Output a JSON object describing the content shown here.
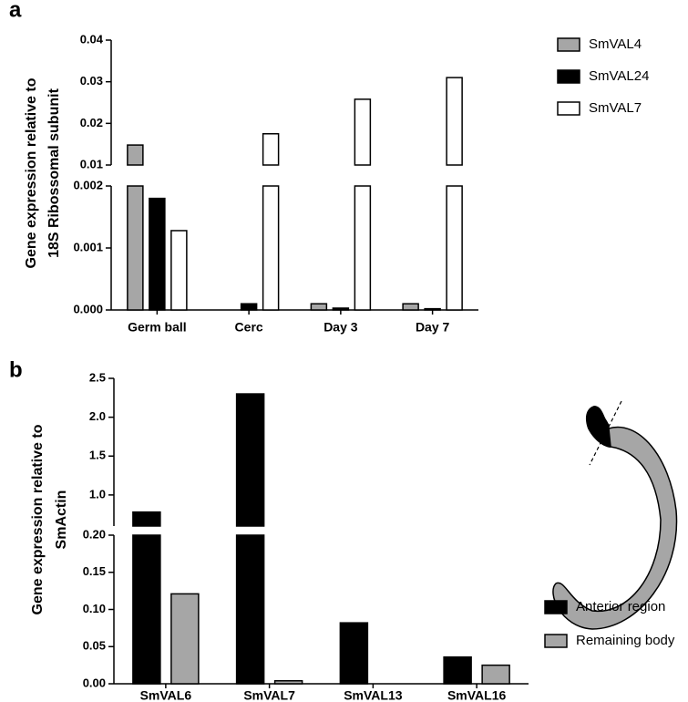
{
  "chart_data": [
    {
      "type": "bar",
      "panel_label": "a",
      "ylabel": [
        "Gene expression relative to",
        "18S Ribossomal subunit"
      ],
      "categories": [
        "Germ ball",
        "Cerc",
        "Day 3",
        "Day 7"
      ],
      "series": [
        {
          "name": "SmVAL4",
          "color": "#a6a6a6",
          "values": [
            0.0148,
            0,
            0.0001,
            0.0001
          ]
        },
        {
          "name": "SmVAL24",
          "color": "#000000",
          "values": [
            0.0018,
            0.0001,
            3e-05,
            2e-05
          ]
        },
        {
          "name": "SmVAL7",
          "color": "#ffffff",
          "values": [
            0.00128,
            0.0175,
            0.0258,
            0.031
          ]
        }
      ],
      "y_segments": [
        {
          "ylim": [
            0,
            0.002
          ],
          "yticks": [
            {
              "value": 0,
              "label": "0.000"
            },
            0.001,
            0.002
          ]
        },
        {
          "ylim": [
            0.01,
            0.04
          ],
          "yticks": [
            0.01,
            0.02,
            0.03,
            0.04
          ]
        }
      ],
      "legend": "right"
    },
    {
      "type": "bar",
      "panel_label": "b",
      "ylabel": [
        "Gene expression relative to",
        "SmActin"
      ],
      "categories": [
        "SmVAL6",
        "SmVAL7",
        "SmVAL13",
        "SmVAL16"
      ],
      "series": [
        {
          "name": "Anterior region",
          "color": "#000000",
          "values": [
            0.78,
            2.3,
            0.082,
            0.036
          ]
        },
        {
          "name": "Remaining body",
          "color": "#a6a6a6",
          "values": [
            0.121,
            0.004,
            0,
            0.025
          ]
        }
      ],
      "y_segments": [
        {
          "ylim": [
            0,
            0.2
          ],
          "yticks": [
            {
              "value": 0,
              "label": "0.00"
            },
            0.05,
            {
              "value": 0.1,
              "label": "0.10"
            },
            0.15,
            {
              "value": 0.2,
              "label": "0.20"
            }
          ]
        },
        {
          "ylim": [
            0.6,
            2.5
          ],
          "yticks": [
            {
              "value": 1,
              "label": "1.0"
            },
            1.5,
            {
              "value": 2,
              "label": "2.0"
            },
            2.5
          ]
        }
      ],
      "legend": "right"
    }
  ]
}
